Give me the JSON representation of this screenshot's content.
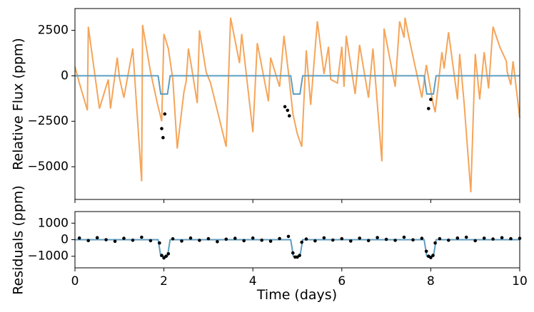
{
  "chart_data": [
    {
      "type": "scatter",
      "panel": "top",
      "title": "",
      "xlabel": "",
      "ylabel": "Relative Flux (ppm)",
      "xlim": [
        0,
        10
      ],
      "ylim": [
        -6800,
        3700
      ],
      "yticks": [
        {
          "value": 2500,
          "label": "2500"
        },
        {
          "value": 0,
          "label": "0"
        },
        {
          "value": -2500,
          "label": "−2500"
        },
        {
          "value": -5000,
          "label": "−5000"
        }
      ],
      "grid": false,
      "legend": "none",
      "colors": {
        "data_points": "#000000",
        "full_model": "#f5a55a",
        "transit_model": "#5e9ec0"
      },
      "series": [
        {
          "kind": "line",
          "role": "full-model",
          "x": [
            0,
            0.1,
            0.28,
            0.3,
            0.55,
            0.75,
            0.8,
            0.95,
            1.0,
            1.1,
            1.3,
            1.5,
            1.52,
            1.7,
            1.85,
            1.95,
            2.0,
            2.1,
            2.2,
            2.3,
            2.45,
            2.5,
            2.55,
            2.6,
            2.75,
            2.8,
            2.95,
            3.05,
            3.4,
            3.5,
            3.7,
            3.75,
            4.0,
            4.1,
            4.35,
            4.4,
            4.6,
            4.7,
            4.8,
            4.9,
            5.0,
            5.1,
            5.2,
            5.3,
            5.45,
            5.6,
            5.7,
            5.75,
            5.9,
            6.0,
            6.05,
            6.1,
            6.3,
            6.4,
            6.6,
            6.7,
            6.9,
            6.95,
            7.2,
            7.3,
            7.4,
            7.42,
            7.5,
            7.8,
            7.9,
            8.05,
            8.1,
            8.25,
            8.3,
            8.4,
            8.6,
            8.65,
            8.75,
            8.9,
            9.0,
            9.1,
            9.2,
            9.3,
            9.4,
            9.55,
            9.7,
            9.72,
            9.8,
            9.85,
            10.0
          ],
          "y": [
            500,
            -400,
            -1900,
            2700,
            -1800,
            -200,
            -1800,
            1000,
            -100,
            -1200,
            1500,
            -5800,
            2800,
            200,
            -1500,
            -2500,
            2300,
            1500,
            -200,
            -4000,
            -900,
            -300,
            1500,
            800,
            -1500,
            2500,
            200,
            -400,
            -3900,
            3200,
            700,
            2300,
            -3100,
            1800,
            -1400,
            1000,
            -600,
            2200,
            200,
            -2100,
            -3200,
            -3900,
            1400,
            -1600,
            3000,
            100,
            1600,
            -200,
            -400,
            1600,
            -600,
            2200,
            -1000,
            1700,
            -1200,
            1500,
            -4700,
            2600,
            -600,
            3000,
            2100,
            3200,
            2200,
            -1200,
            600,
            -1500,
            -2000,
            1300,
            400,
            2400,
            -1300,
            1200,
            -1500,
            -6400,
            1200,
            -1300,
            1300,
            -700,
            2700,
            1600,
            800,
            200,
            -500,
            800,
            -2300
          ]
        },
        {
          "kind": "line",
          "role": "transit-model",
          "x": [
            0,
            1.87,
            1.93,
            2.08,
            2.14,
            4.85,
            4.91,
            5.06,
            5.12,
            7.85,
            7.91,
            8.06,
            8.12,
            10
          ],
          "y": [
            0,
            0,
            -1000,
            -1000,
            0,
            0,
            -1000,
            -1000,
            0,
            0,
            -1000,
            -1000,
            0,
            0
          ]
        },
        {
          "kind": "points",
          "role": "data",
          "x": [
            1.95,
            1.98,
            2.02,
            4.72,
            4.78,
            4.82,
            7.95,
            8.0
          ],
          "y": [
            -2900,
            -3400,
            -2100,
            -1700,
            -1900,
            -2200,
            -1800,
            -1300
          ]
        }
      ]
    },
    {
      "type": "scatter",
      "panel": "bottom",
      "title": "",
      "xlabel": "Time (days)",
      "ylabel": "Residuals (ppm)",
      "xlim": [
        0,
        10
      ],
      "ylim": [
        -1700,
        1700
      ],
      "xticks": [
        {
          "value": 0,
          "label": "0"
        },
        {
          "value": 2,
          "label": "2"
        },
        {
          "value": 4,
          "label": "4"
        },
        {
          "value": 6,
          "label": "6"
        },
        {
          "value": 8,
          "label": "8"
        },
        {
          "value": 10,
          "label": "10"
        }
      ],
      "yticks": [
        {
          "value": 1000,
          "label": "1000"
        },
        {
          "value": 0,
          "label": "0"
        },
        {
          "value": -1000,
          "label": "−1000"
        }
      ],
      "grid": false,
      "legend": "none",
      "colors": {
        "data_points": "#000000",
        "transit_model": "#5e9ec0"
      },
      "series": [
        {
          "kind": "line",
          "role": "transit-model",
          "x": [
            0,
            1.87,
            1.93,
            2.08,
            2.14,
            4.85,
            4.91,
            5.06,
            5.12,
            7.85,
            7.91,
            8.06,
            8.12,
            10
          ],
          "y": [
            0,
            0,
            -1000,
            -1000,
            0,
            0,
            -1000,
            -1000,
            0,
            0,
            -1000,
            -1000,
            0,
            0
          ]
        },
        {
          "kind": "points",
          "role": "data",
          "x": [
            0.1,
            0.3,
            0.5,
            0.7,
            0.9,
            1.1,
            1.3,
            1.5,
            1.7,
            1.9,
            1.95,
            2.0,
            2.05,
            2.1,
            2.2,
            2.4,
            2.6,
            2.8,
            3.0,
            3.2,
            3.4,
            3.6,
            3.8,
            4.0,
            4.2,
            4.4,
            4.6,
            4.8,
            4.9,
            4.95,
            5.0,
            5.05,
            5.1,
            5.2,
            5.4,
            5.6,
            5.8,
            6.0,
            6.2,
            6.4,
            6.6,
            6.8,
            7.0,
            7.2,
            7.4,
            7.6,
            7.8,
            7.9,
            7.95,
            8.0,
            8.05,
            8.1,
            8.2,
            8.4,
            8.6,
            8.8,
            9.0,
            9.2,
            9.4,
            9.6,
            9.8,
            10.0
          ],
          "y": [
            100,
            -50,
            120,
            0,
            -100,
            80,
            -30,
            150,
            -60,
            -200,
            -950,
            -1100,
            -1000,
            -850,
            50,
            -80,
            100,
            -40,
            60,
            -120,
            30,
            80,
            -60,
            100,
            -30,
            -90,
            70,
            200,
            -800,
            -1050,
            -1050,
            -950,
            -150,
            40,
            -70,
            110,
            -20,
            60,
            -80,
            90,
            -50,
            130,
            20,
            -40,
            150,
            -10,
            80,
            -700,
            -1000,
            -1080,
            -950,
            -200,
            60,
            -30,
            100,
            150,
            -60,
            90,
            40,
            120,
            60,
            80
          ]
        }
      ]
    }
  ]
}
